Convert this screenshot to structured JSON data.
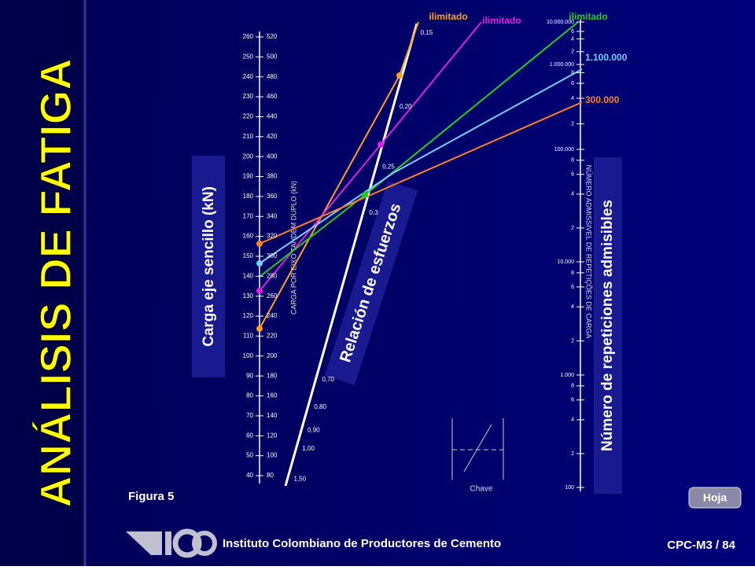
{
  "title": "ANÁLISIS  DE FATIGA",
  "left_scale": {
    "label": "Carga eje sencillo (kN)",
    "caption": "CARGA POR EIXO TANDEM DUPLO (kN)",
    "single": [
      "40",
      "50",
      "60",
      "70",
      "80",
      "90",
      "100",
      "110",
      "120",
      "130",
      "140",
      "150",
      "160",
      "170",
      "180",
      "190",
      "200",
      "210",
      "220",
      "230",
      "240",
      "250",
      "260"
    ],
    "tandem": [
      "80",
      "100",
      "120",
      "140",
      "160",
      "180",
      "200",
      "220",
      "240",
      "260",
      "280",
      "300",
      "320",
      "340",
      "360",
      "380",
      "400",
      "420",
      "440",
      "460",
      "480",
      "500",
      "520"
    ]
  },
  "middle_scale": {
    "label": "Relación de esfuerzos",
    "ticks": [
      "0,15",
      "0,20",
      "0,25",
      "0,3",
      "0,70",
      "0,80",
      "0,90",
      "1,00",
      "1,50"
    ]
  },
  "right_scale": {
    "label": "Número de repeticiones admisibles",
    "caption": "NÚMERO ADMISSIVEL DE REPETIÇÕES DE CARGA",
    "ticks": [
      "10.000.000",
      "6",
      "4",
      "2",
      "1.000.000",
      "8",
      "6",
      "4",
      "2",
      "100.000",
      "8",
      "6",
      "4",
      "2",
      "10.000",
      "8",
      "6",
      "4",
      "2",
      "1.000",
      "8",
      "6",
      "4",
      "2",
      "100"
    ]
  },
  "results": [
    "ilimitado",
    "ilimitado",
    "ilimitado",
    "1.100.000",
    "300.000"
  ],
  "figure": "Figura 5",
  "key": "Chave",
  "button": "Hoja",
  "footer": {
    "institute": "Instituto Colombiano de Productores de Cemento",
    "code": "CPC-M3 / 84"
  }
}
